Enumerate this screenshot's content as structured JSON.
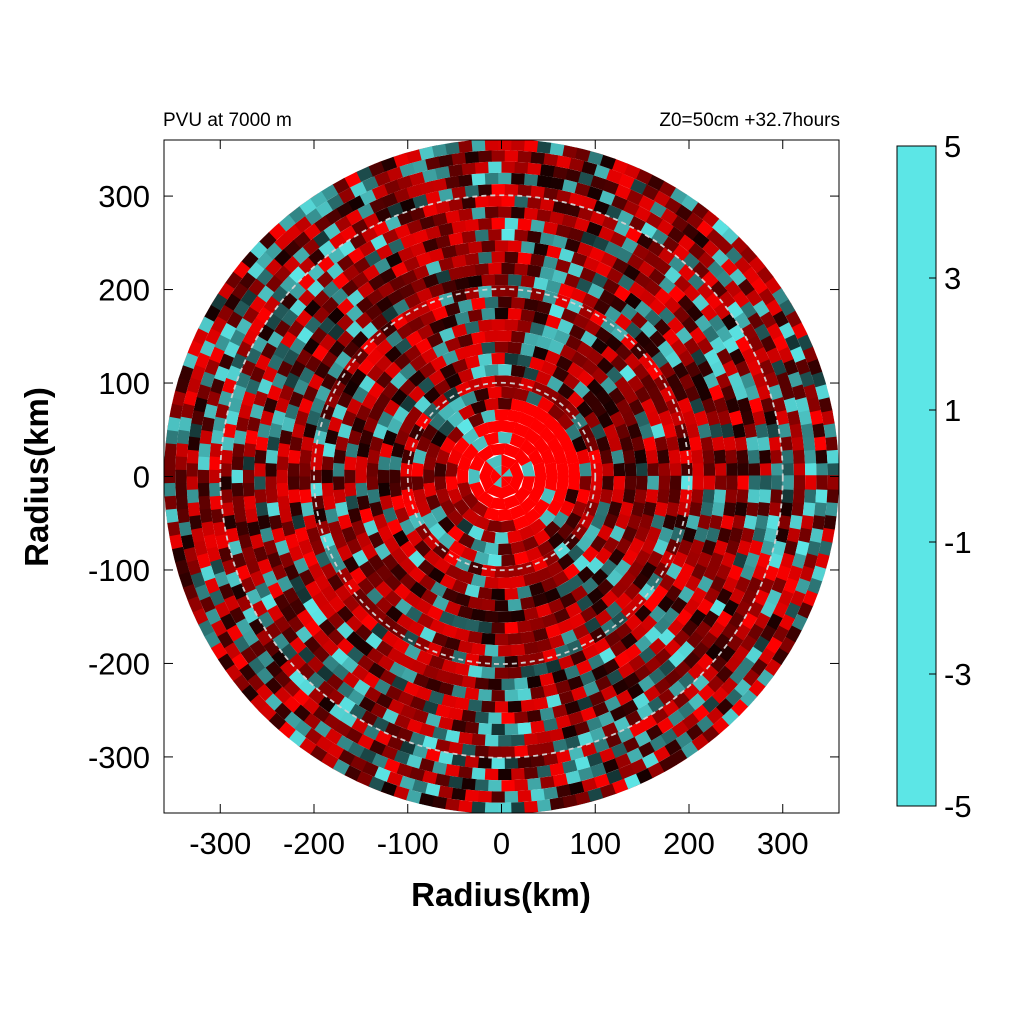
{
  "chart_data": {
    "type": "heatmap",
    "title_left": "PVU at  7000 m",
    "title_right": "Z0=50cm  +32.7hours",
    "xlabel": "Radius(km)",
    "ylabel": "Radius(km)",
    "xlim": [
      -360,
      360
    ],
    "ylim": [
      -360,
      360
    ],
    "x_ticks": [
      -300,
      -200,
      -100,
      0,
      100,
      200,
      300
    ],
    "y_ticks": [
      -300,
      -200,
      -100,
      0,
      100,
      200,
      300
    ],
    "x_tick_labels": [
      "-300",
      "-200",
      "-100",
      "0",
      "100",
      "200",
      "300"
    ],
    "y_tick_labels": [
      "-300",
      "-200",
      "-100",
      "0",
      "100",
      "200",
      "300"
    ],
    "domain_radius_km": 360,
    "range_rings_km": [
      100,
      200,
      300
    ],
    "grid": false,
    "legend": "none",
    "colorbar": {
      "placement": "right",
      "range": [
        -5,
        5
      ],
      "ticks": [
        5,
        3,
        1,
        -1,
        -3,
        -5
      ],
      "tick_labels": [
        "5",
        "3",
        "1",
        "-1",
        "-3",
        "-5"
      ],
      "stops": [
        {
          "value": -5,
          "color": "#5ce6e6"
        },
        {
          "value": -3,
          "color": "#3a9a9a"
        },
        {
          "value": 0,
          "color": "#000000"
        },
        {
          "value": 2,
          "color": "#800000"
        },
        {
          "value": 5,
          "color": "#ff0000"
        }
      ]
    },
    "field_summary": "Central core within ~100 km saturated above 5 PVU; surrounding annuli mix dark-red positive values (1 to 3) with cyan negative bands (-1 to -5), more negative toward the outer edge."
  }
}
